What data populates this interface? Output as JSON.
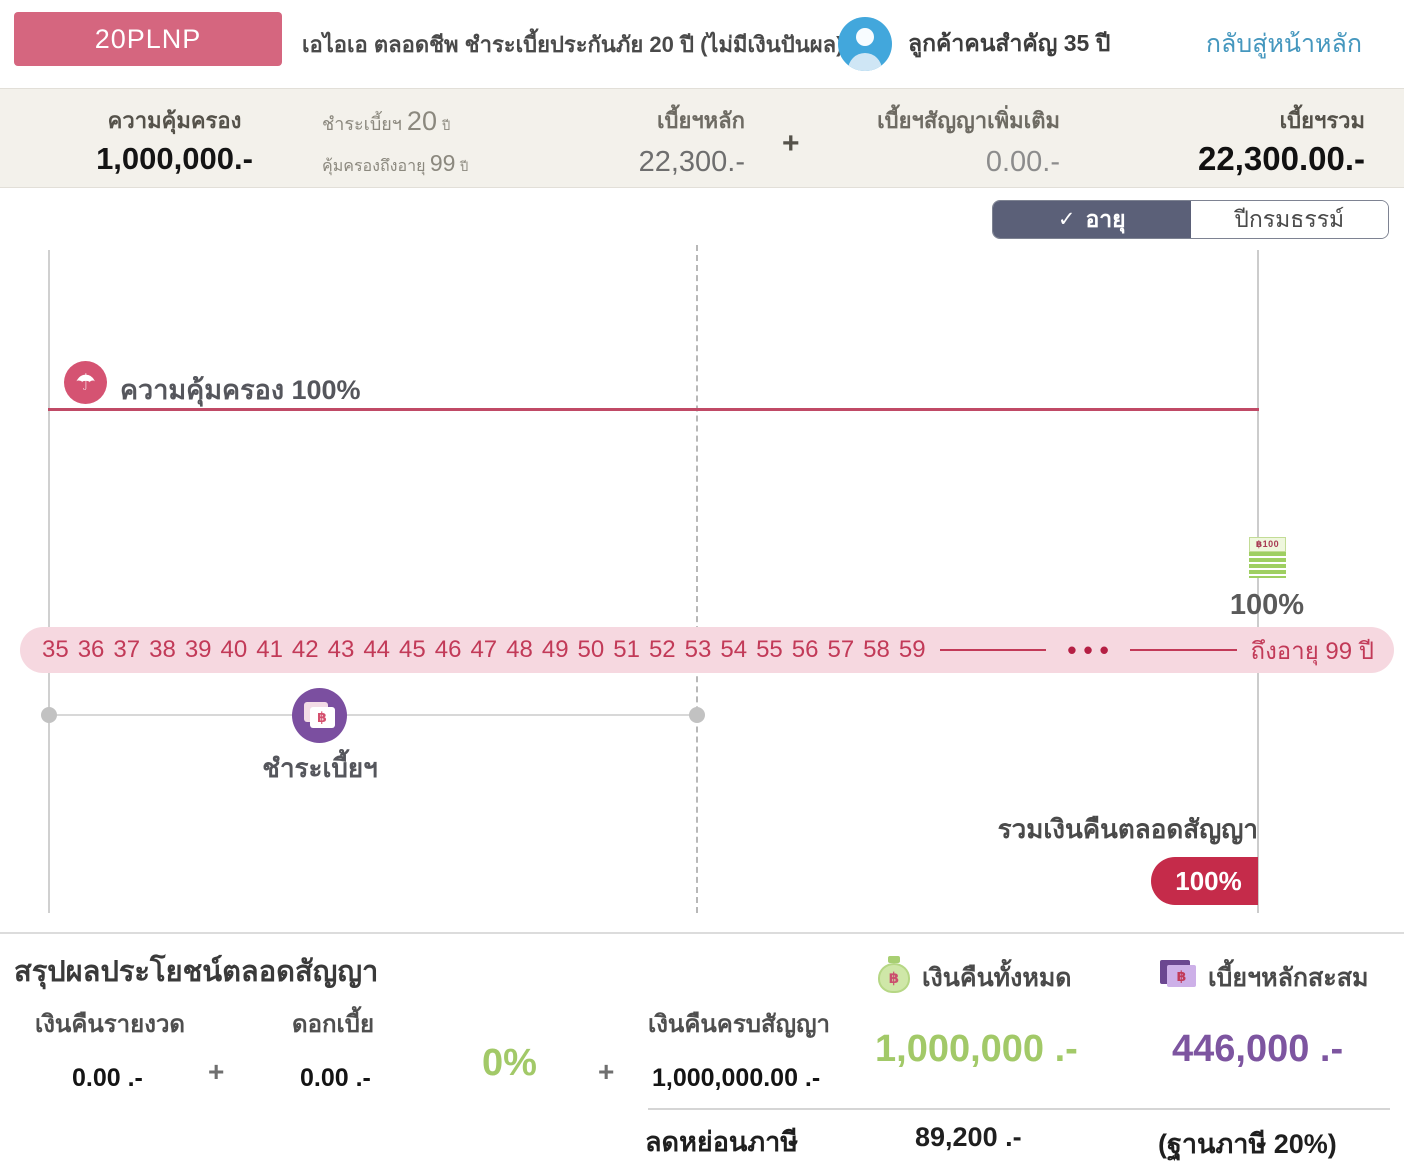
{
  "colors": {
    "accent_pink": "#d5667f",
    "crimson_line": "#c04a66",
    "age_band_bg": "#f6d8e0",
    "age_text": "#c23a58",
    "badge_red": "#c52b4a",
    "purple": "#7d55a0",
    "green": "#a2c968",
    "link_blue": "#4597be",
    "avatar_blue": "#42a7dc",
    "toggle_dark": "#5b6078",
    "summary_bg": "#f3f1eb"
  },
  "icons": {
    "umbrella": "☂",
    "check": "✓",
    "baht": "฿",
    "dots": "•••"
  },
  "header": {
    "plan_code": "20PLNP",
    "product_title": "เอไอเอ ตลอดชีพ ชำระเบี้ยประกันภัย 20 ปี (ไม่มีเงินปันผล)",
    "customer": "ลูกค้าคนสำคัญ 35 ปี",
    "back_link": "กลับสู่หน้าหลัก"
  },
  "summary": {
    "coverage": {
      "label": "ความคุ้มครอง",
      "value": "1,000,000.-"
    },
    "period": {
      "pay_label": "ชำระเบี้ยฯ",
      "pay_value": "20",
      "pay_unit": "ปี",
      "until_label": "คุ้มครองถึงอายุ",
      "until_value": "99",
      "until_unit": "ปี"
    },
    "base": {
      "label": "เบี้ยฯหลัก",
      "value": "22,300.-"
    },
    "plus": "+",
    "rider": {
      "label": "เบี้ยฯสัญญาเพิ่มเติม",
      "value": "0.00.-"
    },
    "total": {
      "label": "เบี้ยฯรวม",
      "value": "22,300.00.-"
    }
  },
  "toggle": {
    "age_tab": "อายุ",
    "policy_year_tab": "ปีกรมธรรม์"
  },
  "chart": {
    "coverage_label": "ความคุ้มครอง 100%",
    "banknote_text": "฿100",
    "maturity_percent": "100%",
    "ages": [
      "35",
      "36",
      "37",
      "38",
      "39",
      "40",
      "41",
      "42",
      "43",
      "44",
      "45",
      "46",
      "47",
      "48",
      "49",
      "50",
      "51",
      "52",
      "53",
      "54",
      "55",
      "56",
      "57",
      "58",
      "59"
    ],
    "age_end_label": "ถึงอายุ 99 ปี",
    "premium_label": "ชำระเบี้ยฯ",
    "total_refund_label": "รวมเงินคืนตลอดสัญญา",
    "total_refund_percent": "100%"
  },
  "benefits": {
    "title": "สรุปผลประโยชน์ตลอดสัญญา",
    "periodic_refund": {
      "label": "เงินคืนรายงวด",
      "value": "0.00 .-"
    },
    "plus1": "+",
    "interest": {
      "label": "ดอกเบี้ย",
      "value": "0.00 .-",
      "percent": "0%"
    },
    "plus2": "+",
    "maturity_refund": {
      "label": "เงินคืนครบสัญญา",
      "value": "1,000,000.00 .-"
    },
    "total_refund": {
      "label": "เงินคืนทั้งหมด",
      "value": "1,000,000 .-"
    },
    "accumulated_premium": {
      "label": "เบี้ยฯหลักสะสม",
      "value": "446,000 .-"
    },
    "tax": {
      "label": "ลดหย่อนภาษี",
      "value": "89,200 .-",
      "base": "(ฐานภาษี 20%)"
    }
  }
}
